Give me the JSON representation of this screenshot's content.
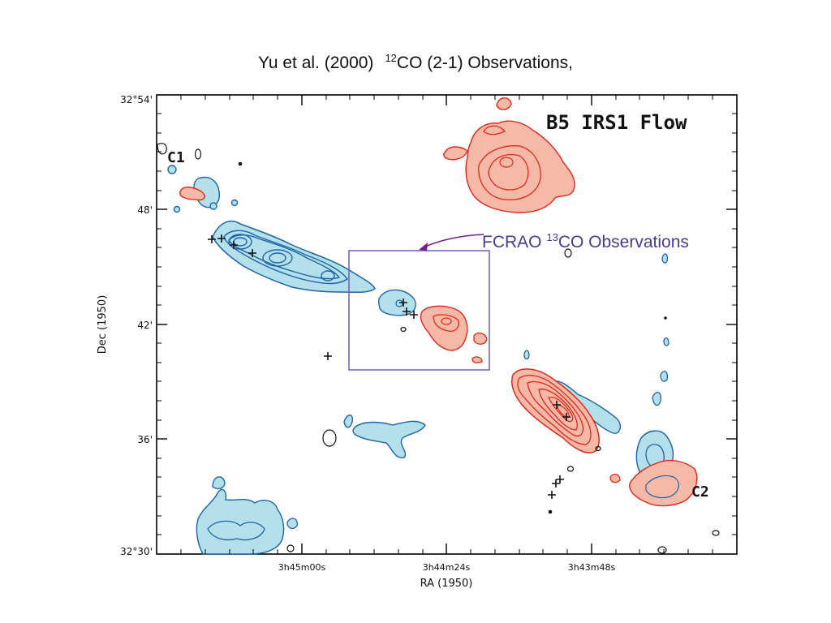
{
  "title": {
    "pre": "Yu et al. (2000)",
    "iso": "12",
    "post": "CO (2-1) Observations,"
  },
  "plot_label": "B5 IRS1 Flow",
  "axes": {
    "xlabel": "RA (1950)",
    "ylabel": "Dec (1950)",
    "xticks": [
      "3h45m00s",
      "3h44m24s",
      "3h43m48s"
    ],
    "yticks": [
      "32°54'",
      "48'",
      "42'",
      "36'",
      "32°30'"
    ]
  },
  "annotation": {
    "pre": "FCRAO ",
    "iso": "13",
    "post": "CO Observations"
  },
  "labels": {
    "c1": "C1",
    "c2": "C2"
  },
  "colors": {
    "blue_fill": "#b3e0ea",
    "blue_line": "#1f63a8",
    "red_fill": "#f6b9a8",
    "red_line": "#e0281c",
    "box": "#6a5fb5",
    "arrow": "#7a1a8c"
  }
}
